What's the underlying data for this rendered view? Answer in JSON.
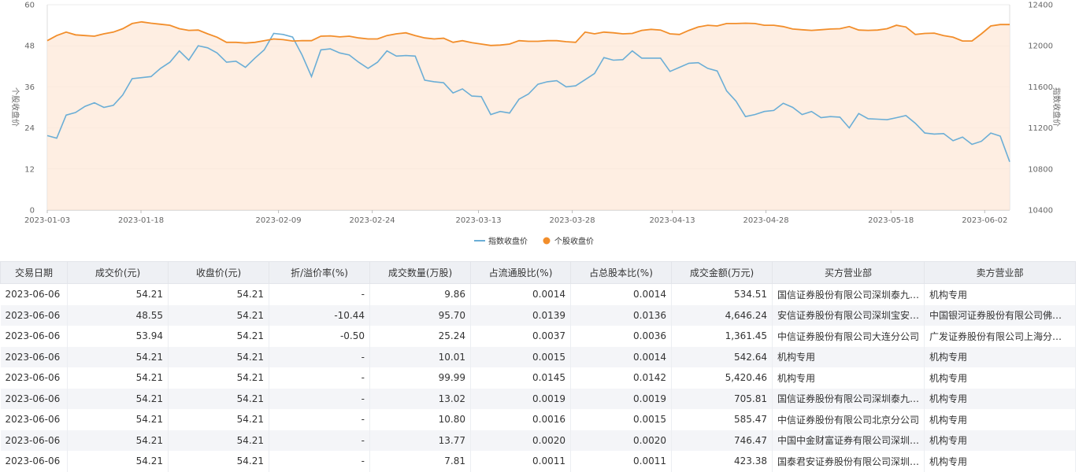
{
  "chart_data": {
    "type": "line",
    "xlabel": "",
    "y_left_label": "个股收盘价",
    "y_right_label": "指数收盘价",
    "y_left_lim": [
      0,
      60
    ],
    "y_left_ticks": [
      0,
      12,
      24,
      36,
      48,
      60
    ],
    "y_right_lim": [
      10400,
      12400
    ],
    "y_right_ticks": [
      10400,
      10800,
      11200,
      11600,
      12000,
      12400
    ],
    "x_range": [
      "2023-01-03",
      "2023-06-06"
    ],
    "x_ticks": [
      "2023-01-03",
      "2023-01-18",
      "2023-02-09",
      "2023-02-24",
      "2023-03-13",
      "2023-03-28",
      "2023-04-13",
      "2023-04-28",
      "2023-05-18",
      "2023-06-02"
    ],
    "grid": true,
    "legend_position": "bottom",
    "series": [
      {
        "name": "指数收盘价",
        "color": "#6baed6",
        "axis": "right",
        "values": [
          11125,
          11100,
          11325,
          11350,
          11410,
          11445,
          11400,
          11420,
          11520,
          11680,
          11690,
          11700,
          11780,
          11840,
          11950,
          11860,
          12000,
          11980,
          11930,
          11840,
          11850,
          11790,
          11880,
          11960,
          12120,
          12110,
          12085,
          11910,
          11700,
          11960,
          11970,
          11930,
          11910,
          11840,
          11780,
          11840,
          11950,
          11900,
          11905,
          11900,
          11665,
          11650,
          11640,
          11540,
          11580,
          11510,
          11505,
          11330,
          11360,
          11345,
          11480,
          11530,
          11625,
          11650,
          11660,
          11600,
          11610,
          11670,
          11730,
          11885,
          11860,
          11865,
          11950,
          11880,
          11880,
          11880,
          11750,
          11790,
          11830,
          11835,
          11780,
          11755,
          11560,
          11460,
          11310,
          11330,
          11360,
          11370,
          11440,
          11400,
          11330,
          11360,
          11300,
          11310,
          11305,
          11200,
          11340,
          11290,
          11285,
          11280,
          11300,
          11320,
          11245,
          11150,
          11140,
          11145,
          11075,
          11110,
          11040,
          11070,
          11150,
          11120,
          10870
        ]
      },
      {
        "name": "个股收盘价",
        "color": "#f28e2b",
        "axis": "left",
        "values": [
          49.5,
          51.0,
          52.0,
          51.2,
          51.0,
          50.8,
          51.5,
          52.0,
          53.0,
          54.5,
          55.0,
          54.6,
          54.3,
          54.0,
          53.0,
          52.5,
          52.6,
          51.5,
          50.5,
          49.0,
          49.0,
          48.8,
          49.0,
          49.5,
          50.0,
          49.8,
          49.4,
          49.5,
          49.5,
          50.8,
          50.9,
          50.6,
          50.8,
          50.3,
          50.0,
          50.0,
          51.0,
          51.5,
          51.8,
          51.0,
          50.3,
          50.0,
          50.2,
          49.0,
          49.5,
          48.9,
          48.5,
          48.1,
          48.2,
          48.5,
          49.5,
          49.3,
          49.3,
          49.5,
          49.5,
          49.2,
          49.0,
          52.0,
          51.5,
          52.0,
          51.8,
          51.5,
          51.6,
          52.5,
          52.8,
          52.6,
          51.5,
          51.3,
          52.5,
          53.5,
          54.0,
          53.8,
          54.5,
          54.5,
          54.6,
          54.5,
          54.0,
          54.0,
          53.6,
          52.9,
          52.7,
          52.5,
          52.7,
          52.9,
          53.0,
          53.6,
          52.6,
          52.5,
          52.6,
          53.0,
          54.0,
          53.5,
          51.3,
          51.6,
          51.7,
          51.0,
          50.5,
          49.4,
          49.4,
          51.5,
          53.8,
          54.2,
          54.2
        ]
      }
    ]
  },
  "table": {
    "headers": [
      "交易日期",
      "成交价(元)",
      "收盘价(元)",
      "折/溢价率(%)",
      "成交数量(万股)",
      "占流通股比(%)",
      "占总股本比(%)",
      "成交金额(万元)",
      "买方营业部",
      "卖方营业部"
    ],
    "rows": [
      [
        "2023-06-06",
        "54.21",
        "54.21",
        "-",
        "9.86",
        "0.0014",
        "0.0014",
        "534.51",
        "国信证券股份有限公司深圳泰九…",
        "机构专用"
      ],
      [
        "2023-06-06",
        "48.55",
        "54.21",
        "-10.44",
        "95.70",
        "0.0139",
        "0.0136",
        "4,646.24",
        "安信证券股份有限公司深圳宝安…",
        "中国银河证券股份有限公司佛山…"
      ],
      [
        "2023-06-06",
        "53.94",
        "54.21",
        "-0.50",
        "25.24",
        "0.0037",
        "0.0036",
        "1,361.45",
        "中信证券股份有限公司大连分公司",
        "广发证券股份有限公司上海分公司"
      ],
      [
        "2023-06-06",
        "54.21",
        "54.21",
        "-",
        "10.01",
        "0.0015",
        "0.0014",
        "542.64",
        "机构专用",
        "机构专用"
      ],
      [
        "2023-06-06",
        "54.21",
        "54.21",
        "-",
        "99.99",
        "0.0145",
        "0.0142",
        "5,420.46",
        "机构专用",
        "机构专用"
      ],
      [
        "2023-06-06",
        "54.21",
        "54.21",
        "-",
        "13.02",
        "0.0019",
        "0.0019",
        "705.81",
        "国信证券股份有限公司深圳泰九…",
        "机构专用"
      ],
      [
        "2023-06-06",
        "54.21",
        "54.21",
        "-",
        "10.80",
        "0.0016",
        "0.0015",
        "585.47",
        "中信证券股份有限公司北京分公司",
        "机构专用"
      ],
      [
        "2023-06-06",
        "54.21",
        "54.21",
        "-",
        "13.77",
        "0.0020",
        "0.0020",
        "746.47",
        "中国中金财富证券有限公司深圳…",
        "机构专用"
      ],
      [
        "2023-06-06",
        "54.21",
        "54.21",
        "-",
        "7.81",
        "0.0011",
        "0.0011",
        "423.38",
        "国泰君安证券股份有限公司深圳…",
        "机构专用"
      ]
    ]
  }
}
